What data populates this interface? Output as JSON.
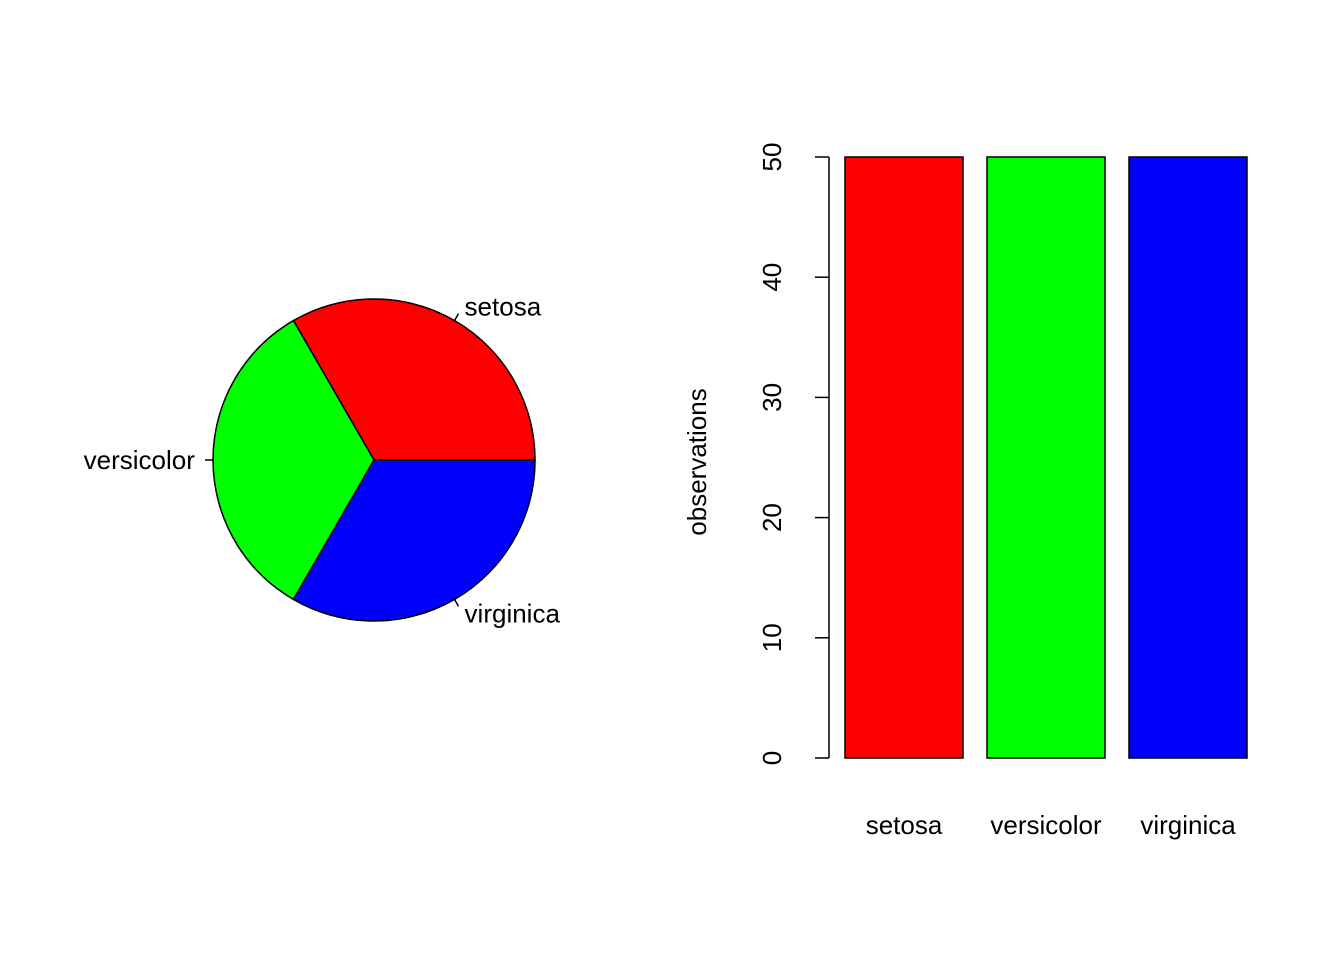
{
  "chart_data": [
    {
      "type": "pie",
      "title": "",
      "categories": [
        "setosa",
        "versicolor",
        "virginica"
      ],
      "values": [
        50,
        50,
        50
      ],
      "colors": [
        "#ff0000",
        "#00ff00",
        "#0000ff"
      ],
      "start_angle_deg": 0,
      "direction": "counterclockwise",
      "legend": "none",
      "labels": "outside"
    },
    {
      "type": "bar",
      "title": "",
      "categories": [
        "setosa",
        "versicolor",
        "virginica"
      ],
      "values": [
        50,
        50,
        50
      ],
      "colors": [
        "#ff0000",
        "#00ff00",
        "#0000ff"
      ],
      "xlabel": "",
      "ylabel": "observations",
      "ylim": [
        0,
        50
      ],
      "yticks": [
        0,
        10,
        20,
        30,
        40,
        50
      ],
      "grid": false,
      "legend": "none"
    }
  ]
}
